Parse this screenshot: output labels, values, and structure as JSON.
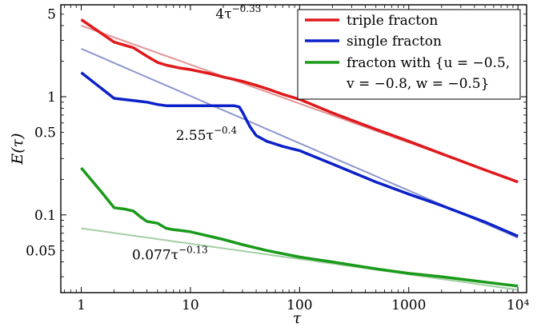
{
  "chart_data": {
    "type": "line",
    "xscale": "log",
    "yscale": "log",
    "xlim": [
      0.65,
      12000
    ],
    "ylim": [
      0.022,
      6
    ],
    "xlabel": "τ",
    "ylabel": "E(τ)",
    "x_ticks": [
      1,
      10,
      100,
      1000,
      10000
    ],
    "x_tick_labels": [
      "1",
      "10",
      "100",
      "1000",
      "10⁴"
    ],
    "y_ticks": [
      0.05,
      0.1,
      0.5,
      1,
      5
    ],
    "y_tick_labels": [
      "0.05",
      "0.1",
      "0.5",
      "1",
      "5"
    ],
    "legend_position": "top-right",
    "grid": false,
    "series": [
      {
        "name": "triple  fracton",
        "color": "#e0191c",
        "x": [
          1,
          2,
          3,
          4,
          5,
          6,
          8,
          10,
          15,
          20,
          30,
          40,
          50,
          70,
          100,
          200,
          500,
          1000,
          2000,
          5000,
          10000
        ],
        "y": [
          4.5,
          2.9,
          2.6,
          2.2,
          1.95,
          1.85,
          1.75,
          1.7,
          1.57,
          1.47,
          1.35,
          1.25,
          1.17,
          1.05,
          0.95,
          0.73,
          0.53,
          0.42,
          0.33,
          0.24,
          0.19
        ]
      },
      {
        "name": "single  fracton",
        "color": "#0c22c8",
        "x": [
          1,
          2,
          3,
          4,
          5,
          6,
          8,
          10,
          15,
          20,
          25,
          28,
          30,
          35,
          40,
          50,
          70,
          100,
          200,
          500,
          1000,
          2000,
          5000,
          10000
        ],
        "y": [
          1.6,
          0.97,
          0.93,
          0.9,
          0.86,
          0.84,
          0.84,
          0.84,
          0.84,
          0.84,
          0.84,
          0.82,
          0.74,
          0.56,
          0.47,
          0.42,
          0.38,
          0.35,
          0.27,
          0.19,
          0.15,
          0.12,
          0.087,
          0.066
        ]
      },
      {
        "name": "fracton with {u = −0.5, v = −0.8, w = −0.5}",
        "label_lines": [
          "fracton with {u = −0.5,",
          "v = −0.8, w = −0.5}"
        ],
        "color": "#1a9a1a",
        "x": [
          1,
          1.5,
          2,
          2.5,
          3,
          3.5,
          4,
          5,
          6,
          7,
          8,
          10,
          15,
          20,
          30,
          50,
          100,
          200,
          500,
          1000,
          2000,
          5000,
          10000
        ],
        "y": [
          0.25,
          0.16,
          0.115,
          0.112,
          0.108,
          0.096,
          0.088,
          0.085,
          0.077,
          0.075,
          0.074,
          0.072,
          0.066,
          0.062,
          0.056,
          0.05,
          0.044,
          0.04,
          0.035,
          0.032,
          0.03,
          0.027,
          0.025
        ]
      }
    ],
    "fits": [
      {
        "label": "4τ^{−0.33}",
        "prefix": "4τ",
        "exponent": "−0.33",
        "a": 4,
        "b": -0.33,
        "color": "#e39595",
        "series": "triple  fracton"
      },
      {
        "label": "2.55τ^{−0.4}",
        "prefix": "2.55τ",
        "exponent": "−0.4",
        "a": 2.55,
        "b": -0.4,
        "color": "#8e97cf",
        "series": "single  fracton"
      },
      {
        "label": "0.077τ^{−0.13}",
        "prefix": "0.077τ",
        "exponent": "−0.13",
        "a": 0.077,
        "b": -0.13,
        "color": "#a5cfa5",
        "series": "fracton with {u = −0.5, v = −0.8, w = −0.5}"
      }
    ]
  }
}
